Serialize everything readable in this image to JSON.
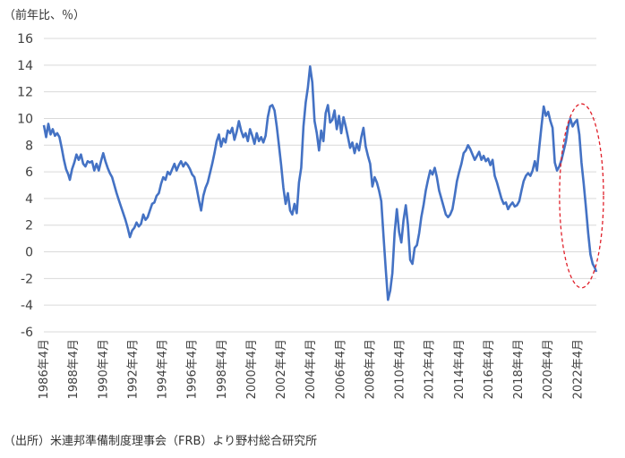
{
  "unit_label": "（前年比、％）",
  "source_note": "（出所）米連邦準備制度理事会（FRB）より野村総合研究所",
  "chart_data": {
    "type": "line",
    "title": "",
    "xlabel": "",
    "ylabel": "",
    "ylim": [
      -6,
      16
    ],
    "yticks": [
      16,
      14,
      12,
      10,
      8,
      6,
      4,
      2,
      0,
      -2,
      -4,
      -6
    ],
    "xlim": [
      1986.25,
      2023.5
    ],
    "xticks": [
      {
        "label": "1986年4月",
        "value": 1986.25
      },
      {
        "label": "1988年4月",
        "value": 1988.25
      },
      {
        "label": "1990年4月",
        "value": 1990.25
      },
      {
        "label": "1992年4月",
        "value": 1992.25
      },
      {
        "label": "1994年4月",
        "value": 1994.25
      },
      {
        "label": "1996年4月",
        "value": 1996.25
      },
      {
        "label": "1998年4月",
        "value": 1998.25
      },
      {
        "label": "2000年4月",
        "value": 2000.25
      },
      {
        "label": "2002年4月",
        "value": 2002.25
      },
      {
        "label": "2004年4月",
        "value": 2004.25
      },
      {
        "label": "2006年4月",
        "value": 2006.25
      },
      {
        "label": "2008年4月",
        "value": 2008.25
      },
      {
        "label": "2010年4月",
        "value": 2010.25
      },
      {
        "label": "2012年4月",
        "value": 2012.25
      },
      {
        "label": "2014年4月",
        "value": 2014.25
      },
      {
        "label": "2016年4月",
        "value": 2016.25
      },
      {
        "label": "2018年4月",
        "value": 2018.25
      },
      {
        "label": "2020年4月",
        "value": 2020.25
      },
      {
        "label": "2022年4月",
        "value": 2022.25
      }
    ],
    "grid": true,
    "line_color": "#4472C4",
    "highlight_color": "#E0202A",
    "highlight": {
      "x_range": [
        2021.5,
        2023.5
      ],
      "y_range": [
        -2.7,
        11.1
      ]
    },
    "series": [
      {
        "points": [
          [
            1986.25,
            9.5
          ],
          [
            1986.4,
            8.6
          ],
          [
            1986.55,
            9.6
          ],
          [
            1986.7,
            8.8
          ],
          [
            1986.85,
            9.2
          ],
          [
            1987.0,
            8.7
          ],
          [
            1987.15,
            8.9
          ],
          [
            1987.3,
            8.6
          ],
          [
            1987.45,
            7.8
          ],
          [
            1987.6,
            6.9
          ],
          [
            1987.75,
            6.2
          ],
          [
            1987.9,
            5.8
          ],
          [
            1988.0,
            5.4
          ],
          [
            1988.15,
            6.2
          ],
          [
            1988.3,
            6.7
          ],
          [
            1988.45,
            7.3
          ],
          [
            1988.6,
            6.9
          ],
          [
            1988.75,
            7.3
          ],
          [
            1988.9,
            6.6
          ],
          [
            1989.05,
            6.4
          ],
          [
            1989.2,
            6.8
          ],
          [
            1989.35,
            6.7
          ],
          [
            1989.5,
            6.8
          ],
          [
            1989.65,
            6.1
          ],
          [
            1989.8,
            6.6
          ],
          [
            1989.95,
            6.1
          ],
          [
            1990.1,
            6.8
          ],
          [
            1990.25,
            7.4
          ],
          [
            1990.4,
            6.8
          ],
          [
            1990.55,
            6.3
          ],
          [
            1990.7,
            5.9
          ],
          [
            1990.85,
            5.6
          ],
          [
            1991.0,
            5.0
          ],
          [
            1991.15,
            4.4
          ],
          [
            1991.3,
            3.9
          ],
          [
            1991.45,
            3.4
          ],
          [
            1991.6,
            2.9
          ],
          [
            1991.75,
            2.4
          ],
          [
            1991.9,
            1.8
          ],
          [
            1992.05,
            1.1
          ],
          [
            1992.2,
            1.6
          ],
          [
            1992.35,
            1.8
          ],
          [
            1992.5,
            2.2
          ],
          [
            1992.65,
            1.9
          ],
          [
            1992.8,
            2.1
          ],
          [
            1992.95,
            2.8
          ],
          [
            1993.1,
            2.4
          ],
          [
            1993.25,
            2.6
          ],
          [
            1993.4,
            3.1
          ],
          [
            1993.55,
            3.6
          ],
          [
            1993.7,
            3.7
          ],
          [
            1993.85,
            4.2
          ],
          [
            1994.0,
            4.4
          ],
          [
            1994.15,
            5.1
          ],
          [
            1994.3,
            5.6
          ],
          [
            1994.45,
            5.4
          ],
          [
            1994.6,
            6.0
          ],
          [
            1994.75,
            5.8
          ],
          [
            1994.9,
            6.2
          ],
          [
            1995.05,
            6.6
          ],
          [
            1995.2,
            6.1
          ],
          [
            1995.35,
            6.5
          ],
          [
            1995.5,
            6.8
          ],
          [
            1995.65,
            6.4
          ],
          [
            1995.8,
            6.7
          ],
          [
            1995.95,
            6.5
          ],
          [
            1996.1,
            6.2
          ],
          [
            1996.25,
            5.8
          ],
          [
            1996.4,
            5.6
          ],
          [
            1996.55,
            4.8
          ],
          [
            1996.7,
            3.9
          ],
          [
            1996.85,
            3.1
          ],
          [
            1997.0,
            4.2
          ],
          [
            1997.15,
            4.8
          ],
          [
            1997.3,
            5.2
          ],
          [
            1997.45,
            5.9
          ],
          [
            1997.6,
            6.6
          ],
          [
            1997.75,
            7.4
          ],
          [
            1997.9,
            8.3
          ],
          [
            1998.05,
            8.8
          ],
          [
            1998.2,
            7.9
          ],
          [
            1998.35,
            8.5
          ],
          [
            1998.5,
            8.2
          ],
          [
            1998.65,
            9.1
          ],
          [
            1998.8,
            8.9
          ],
          [
            1998.95,
            9.3
          ],
          [
            1999.1,
            8.4
          ],
          [
            1999.25,
            9.0
          ],
          [
            1999.4,
            9.8
          ],
          [
            1999.55,
            9.1
          ],
          [
            1999.7,
            8.6
          ],
          [
            1999.85,
            8.9
          ],
          [
            2000.0,
            8.3
          ],
          [
            2000.15,
            9.2
          ],
          [
            2000.3,
            8.7
          ],
          [
            2000.45,
            8.1
          ],
          [
            2000.6,
            8.9
          ],
          [
            2000.75,
            8.3
          ],
          [
            2000.9,
            8.6
          ],
          [
            2001.05,
            8.2
          ],
          [
            2001.2,
            8.7
          ],
          [
            2001.35,
            10.1
          ],
          [
            2001.5,
            10.9
          ],
          [
            2001.65,
            11.0
          ],
          [
            2001.8,
            10.6
          ],
          [
            2001.95,
            9.4
          ],
          [
            2002.1,
            8.0
          ],
          [
            2002.25,
            6.5
          ],
          [
            2002.4,
            4.8
          ],
          [
            2002.55,
            3.6
          ],
          [
            2002.7,
            4.4
          ],
          [
            2002.85,
            3.1
          ],
          [
            2003.0,
            2.8
          ],
          [
            2003.15,
            3.6
          ],
          [
            2003.3,
            2.9
          ],
          [
            2003.45,
            5.2
          ],
          [
            2003.6,
            6.3
          ],
          [
            2003.75,
            9.4
          ],
          [
            2003.9,
            11.2
          ],
          [
            2004.05,
            12.3
          ],
          [
            2004.2,
            13.9
          ],
          [
            2004.35,
            12.7
          ],
          [
            2004.5,
            9.8
          ],
          [
            2004.65,
            8.9
          ],
          [
            2004.8,
            7.6
          ],
          [
            2004.95,
            9.1
          ],
          [
            2005.1,
            8.3
          ],
          [
            2005.25,
            10.4
          ],
          [
            2005.4,
            11.0
          ],
          [
            2005.55,
            9.7
          ],
          [
            2005.7,
            9.9
          ],
          [
            2005.85,
            10.6
          ],
          [
            2006.0,
            9.2
          ],
          [
            2006.15,
            10.2
          ],
          [
            2006.3,
            8.9
          ],
          [
            2006.45,
            10.1
          ],
          [
            2006.6,
            9.4
          ],
          [
            2006.75,
            8.6
          ],
          [
            2006.9,
            7.8
          ],
          [
            2007.05,
            8.2
          ],
          [
            2007.2,
            7.4
          ],
          [
            2007.35,
            8.1
          ],
          [
            2007.5,
            7.6
          ],
          [
            2007.65,
            8.6
          ],
          [
            2007.8,
            9.3
          ],
          [
            2007.95,
            7.9
          ],
          [
            2008.1,
            7.2
          ],
          [
            2008.25,
            6.6
          ],
          [
            2008.4,
            4.9
          ],
          [
            2008.55,
            5.6
          ],
          [
            2008.7,
            5.2
          ],
          [
            2008.85,
            4.6
          ],
          [
            2009.0,
            3.8
          ],
          [
            2009.15,
            1.2
          ],
          [
            2009.3,
            -1.3
          ],
          [
            2009.45,
            -3.6
          ],
          [
            2009.6,
            -2.9
          ],
          [
            2009.75,
            -1.6
          ],
          [
            2009.9,
            1.4
          ],
          [
            2010.05,
            3.2
          ],
          [
            2010.2,
            1.5
          ],
          [
            2010.35,
            0.7
          ],
          [
            2010.5,
            2.4
          ],
          [
            2010.65,
            3.5
          ],
          [
            2010.8,
            2.0
          ],
          [
            2010.95,
            -0.6
          ],
          [
            2011.1,
            -0.9
          ],
          [
            2011.25,
            0.3
          ],
          [
            2011.4,
            0.5
          ],
          [
            2011.55,
            1.4
          ],
          [
            2011.7,
            2.6
          ],
          [
            2011.85,
            3.5
          ],
          [
            2012.0,
            4.6
          ],
          [
            2012.15,
            5.4
          ],
          [
            2012.3,
            6.1
          ],
          [
            2012.45,
            5.8
          ],
          [
            2012.6,
            6.3
          ],
          [
            2012.75,
            5.6
          ],
          [
            2012.9,
            4.6
          ],
          [
            2013.05,
            4.0
          ],
          [
            2013.2,
            3.4
          ],
          [
            2013.35,
            2.8
          ],
          [
            2013.5,
            2.6
          ],
          [
            2013.65,
            2.8
          ],
          [
            2013.8,
            3.2
          ],
          [
            2013.95,
            4.2
          ],
          [
            2014.1,
            5.3
          ],
          [
            2014.25,
            6.0
          ],
          [
            2014.4,
            6.6
          ],
          [
            2014.55,
            7.4
          ],
          [
            2014.7,
            7.6
          ],
          [
            2014.85,
            8.0
          ],
          [
            2015.0,
            7.7
          ],
          [
            2015.15,
            7.3
          ],
          [
            2015.3,
            6.9
          ],
          [
            2015.45,
            7.2
          ],
          [
            2015.6,
            7.5
          ],
          [
            2015.75,
            6.9
          ],
          [
            2015.9,
            7.2
          ],
          [
            2016.05,
            6.8
          ],
          [
            2016.2,
            7.0
          ],
          [
            2016.35,
            6.5
          ],
          [
            2016.5,
            6.9
          ],
          [
            2016.65,
            5.7
          ],
          [
            2016.8,
            5.2
          ],
          [
            2016.95,
            4.6
          ],
          [
            2017.1,
            4.0
          ],
          [
            2017.25,
            3.6
          ],
          [
            2017.4,
            3.7
          ],
          [
            2017.55,
            3.2
          ],
          [
            2017.7,
            3.5
          ],
          [
            2017.85,
            3.7
          ],
          [
            2018.0,
            3.4
          ],
          [
            2018.15,
            3.5
          ],
          [
            2018.3,
            3.8
          ],
          [
            2018.45,
            4.6
          ],
          [
            2018.6,
            5.3
          ],
          [
            2018.75,
            5.7
          ],
          [
            2018.9,
            5.9
          ],
          [
            2019.05,
            5.7
          ],
          [
            2019.2,
            6.1
          ],
          [
            2019.35,
            6.8
          ],
          [
            2019.5,
            6.1
          ],
          [
            2019.65,
            7.8
          ],
          [
            2019.8,
            9.4
          ],
          [
            2019.95,
            10.9
          ],
          [
            2020.1,
            10.2
          ],
          [
            2020.25,
            10.5
          ],
          [
            2020.4,
            9.8
          ],
          [
            2020.55,
            9.3
          ],
          [
            2020.7,
            6.7
          ],
          [
            2020.85,
            6.1
          ],
          [
            2021.0,
            6.4
          ],
          [
            2021.15,
            6.9
          ],
          [
            2021.3,
            7.6
          ],
          [
            2021.45,
            8.3
          ],
          [
            2021.6,
            9.4
          ],
          [
            2021.75,
            10.0
          ],
          [
            2021.9,
            9.4
          ],
          [
            2022.05,
            9.7
          ],
          [
            2022.2,
            9.9
          ],
          [
            2022.35,
            8.8
          ],
          [
            2022.5,
            6.7
          ],
          [
            2022.65,
            5.1
          ],
          [
            2022.8,
            3.3
          ],
          [
            2022.95,
            1.4
          ],
          [
            2023.1,
            -0.2
          ],
          [
            2023.25,
            -0.9
          ],
          [
            2023.4,
            -1.2
          ],
          [
            2023.5,
            -1.5
          ]
        ]
      }
    ]
  }
}
